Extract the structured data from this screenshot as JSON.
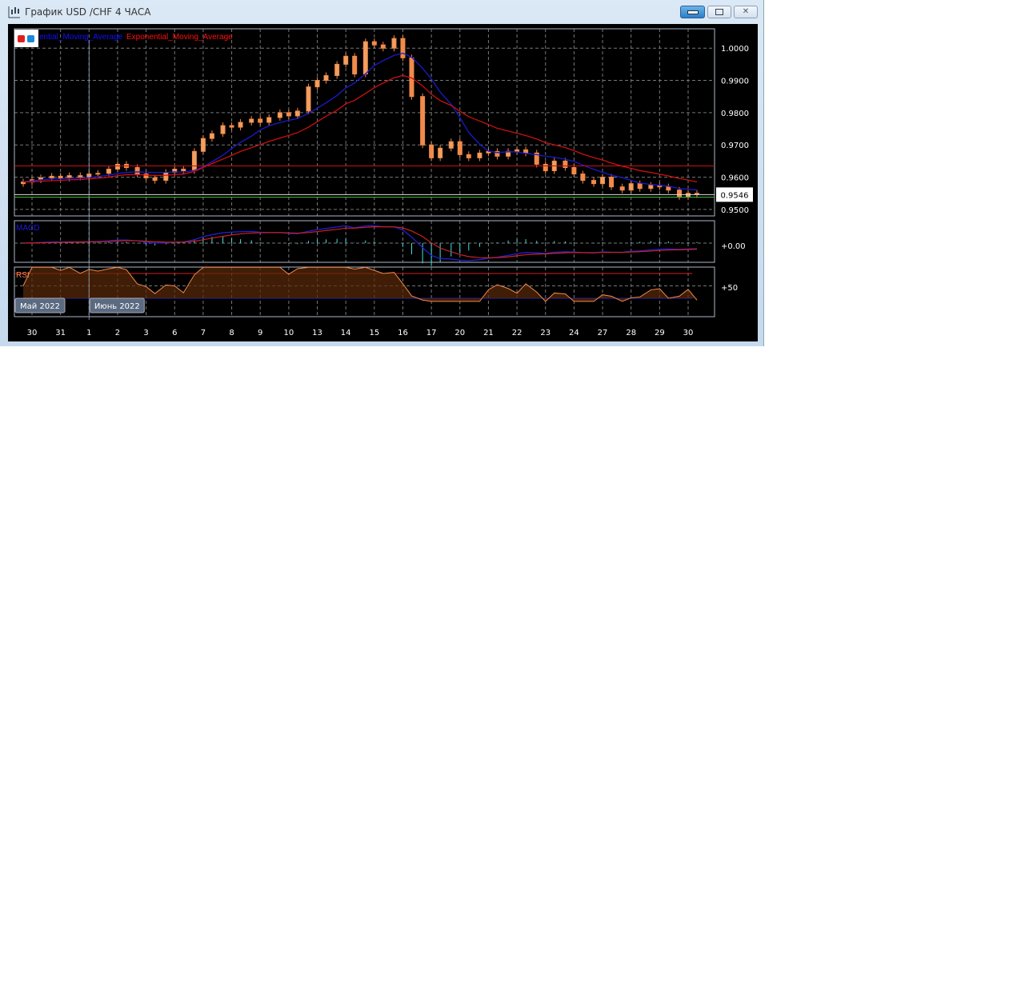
{
  "window": {
    "title": "График USD /CHF  4 ЧАСА",
    "minimize_icon": "minimize-icon",
    "restore_icon": "restore-icon",
    "close_icon": "close-icon"
  },
  "legend": {
    "sma_label": "ential_Moving_Average",
    "ema_label": "Exponential_Moving_Average",
    "sma_color": "#1010ff",
    "ema_color": "#ff1010"
  },
  "colors": {
    "background": "#000000",
    "candle": "#f08a4b",
    "sma": "#1a1acc",
    "ema": "#cc1010",
    "support": "#cc1010",
    "bid": "#e0e0e0",
    "ask": "#40c040",
    "macd": "#2020d0",
    "signal": "#d02020",
    "hist": "#40e0e0",
    "rsi": "#f08a4b"
  },
  "chart_data": {
    "type": "candlestick",
    "symbol": "USD /CHF",
    "timeframe": "4 ЧАСА",
    "y_ticks": [
      "1.0000",
      "0.9900",
      "0.9800",
      "0.9700",
      "0.9600",
      "0.9500"
    ],
    "ylim": [
      0.948,
      1.006
    ],
    "current_price": "0.9546",
    "horizontal_lines": {
      "support": 0.9635,
      "bid": 0.9546,
      "ask": 0.9538
    },
    "x_labels": [
      "30",
      "31",
      "1",
      "2",
      "3",
      "6",
      "7",
      "8",
      "9",
      "10",
      "13",
      "14",
      "15",
      "16",
      "17",
      "20",
      "21",
      "22",
      "23",
      "24",
      "27",
      "28",
      "29",
      "30"
    ],
    "month_labels": [
      {
        "label": "Май 2022",
        "day_index": 0
      },
      {
        "label": "Июнь 2022",
        "day_index": 2
      }
    ],
    "candles_per_day": 3,
    "first_open": 0.958,
    "closes": [
      0.9585,
      0.9592,
      0.9598,
      0.9603,
      0.9597,
      0.9605,
      0.96,
      0.961,
      0.9612,
      0.9625,
      0.964,
      0.963,
      0.961,
      0.9598,
      0.959,
      0.9615,
      0.9625,
      0.962,
      0.968,
      0.972,
      0.9735,
      0.976,
      0.9755,
      0.977,
      0.978,
      0.977,
      0.9785,
      0.98,
      0.979,
      0.9805,
      0.988,
      0.99,
      0.9915,
      0.995,
      0.9975,
      0.992,
      1.002,
      1.001,
      1.0,
      1.003,
      0.997,
      0.985,
      0.97,
      0.966,
      0.969,
      0.971,
      0.967,
      0.966,
      0.9675,
      0.968,
      0.9665,
      0.968,
      0.9685,
      0.9675,
      0.964,
      0.962,
      0.965,
      0.963,
      0.961,
      0.959,
      0.958,
      0.96,
      0.957,
      0.956,
      0.958,
      0.9565,
      0.9575,
      0.957,
      0.956,
      0.954,
      0.955,
      0.9546
    ],
    "indicators": {
      "moving_averages": [
        "Simple_Moving_Average",
        "Exponential_Moving_Average"
      ],
      "macd": {
        "label": "MACD",
        "tick": "+0.00"
      },
      "rsi": {
        "label": "RSI",
        "tick": "+50",
        "levels": [
          70,
          50,
          30
        ]
      }
    }
  }
}
